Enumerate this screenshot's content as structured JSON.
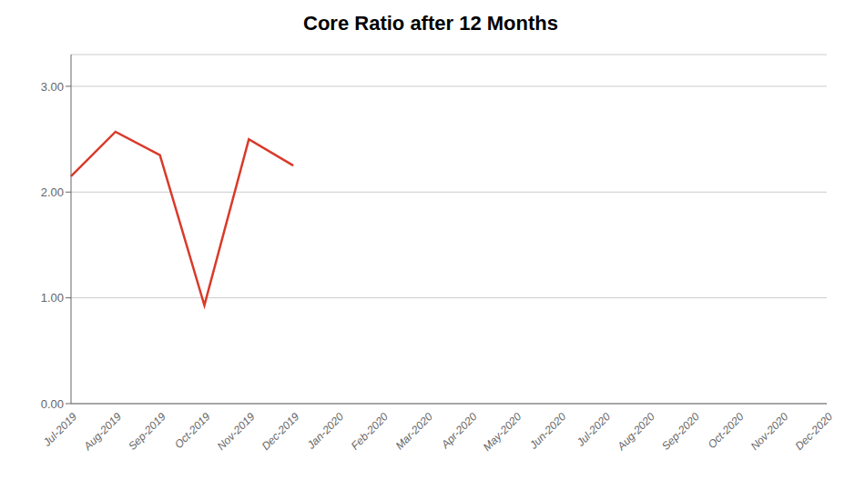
{
  "chart_data": {
    "type": "line",
    "title": "Core Ratio after 12 Months",
    "categories": [
      "Jul-2019",
      "Aug-2019",
      "Sep-2019",
      "Oct-2019",
      "Nov-2019",
      "Dec-2019",
      "Jan-2020",
      "Feb-2020",
      "Mar-2020",
      "Apr-2020",
      "May-2020",
      "Jun-2020",
      "Jul-2020",
      "Aug-2020",
      "Sep-2020",
      "Oct-2020",
      "Nov-2020",
      "Dec-2020"
    ],
    "values": [
      2.15,
      2.57,
      2.35,
      0.93,
      2.5,
      2.25,
      null,
      null,
      null,
      null,
      null,
      null,
      null,
      null,
      null,
      null,
      null,
      null
    ],
    "color": "#d93a2a",
    "ylim": [
      0.0,
      3.3
    ],
    "yticks": [
      {
        "value": 0,
        "label": "0.00"
      },
      {
        "value": 1,
        "label": "1.00"
      },
      {
        "value": 2,
        "label": "2.00"
      },
      {
        "value": 3,
        "label": "3.00"
      }
    ],
    "grid": true
  }
}
